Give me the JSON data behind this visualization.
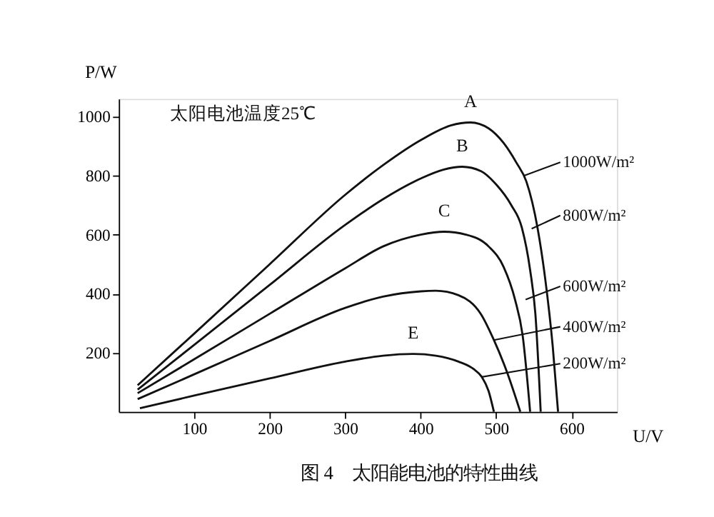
{
  "chart_data": {
    "type": "line",
    "xlabel": "U/V",
    "ylabel": "P/W",
    "xlim": [
      0,
      660
    ],
    "ylim": [
      0,
      1060
    ],
    "xticks": [
      100,
      200,
      300,
      400,
      500,
      600
    ],
    "yticks": [
      200,
      400,
      600,
      800,
      1000
    ],
    "grid": false,
    "marker": "none",
    "line_style": "solid",
    "series": [
      {
        "name": "A",
        "color": "#111111",
        "x": [
          25,
          100,
          200,
          300,
          350,
          400,
          440,
          466,
          490,
          510,
          527,
          540,
          555,
          565,
          575,
          582
        ],
        "values": [
          90,
          265,
          500,
          735,
          835,
          920,
          970,
          980,
          960,
          910,
          843,
          780,
          620,
          450,
          220,
          0
        ]
      },
      {
        "name": "B",
        "color": "#111111",
        "x": [
          25,
          100,
          200,
          300,
          350,
          400,
          430,
          455,
          480,
          500,
          520,
          534,
          545,
          552,
          559
        ],
        "values": [
          75,
          227,
          430,
          633,
          720,
          790,
          820,
          830,
          815,
          770,
          700,
          624,
          480,
          330,
          0
        ]
      },
      {
        "name": "C",
        "color": "#111111",
        "x": [
          25,
          100,
          200,
          300,
          350,
          400,
          431,
          460,
          490,
          510,
          525,
          535,
          545
        ],
        "values": [
          63,
          178,
          332,
          486,
          560,
          600,
          610,
          600,
          560,
          490,
          380,
          260,
          0
        ]
      },
      {
        "color": "#111111",
        "x": [
          25,
          100,
          200,
          300,
          350,
          400,
          420,
          450,
          480,
          497,
          515,
          532
        ],
        "values": [
          43,
          127,
          240,
          352,
          390,
          408,
          410,
          395,
          330,
          243,
          130,
          0
        ]
      },
      {
        "name": "E",
        "color": "#111111",
        "x": [
          28,
          100,
          200,
          300,
          350,
          390,
          420,
          450,
          470,
          481,
          490,
          497
        ],
        "values": [
          12,
          55,
          113,
          170,
          190,
          196,
          190,
          170,
          145,
          118,
          70,
          0
        ]
      }
    ],
    "annotations": [
      "太阳电池温度25℃",
      {
        "text": "1000W/m²",
        "x": 537,
        "y": 800
      },
      {
        "text": "800W/m²",
        "x": 547,
        "y": 620
      },
      {
        "text": "600W/m²",
        "x": 539,
        "y": 380
      },
      {
        "text": "400W/m²",
        "x": 497,
        "y": 243
      },
      {
        "text": "200W/m²",
        "x": 481,
        "y": 118
      },
      "图 4　太阳能电池的特性曲线"
    ]
  }
}
